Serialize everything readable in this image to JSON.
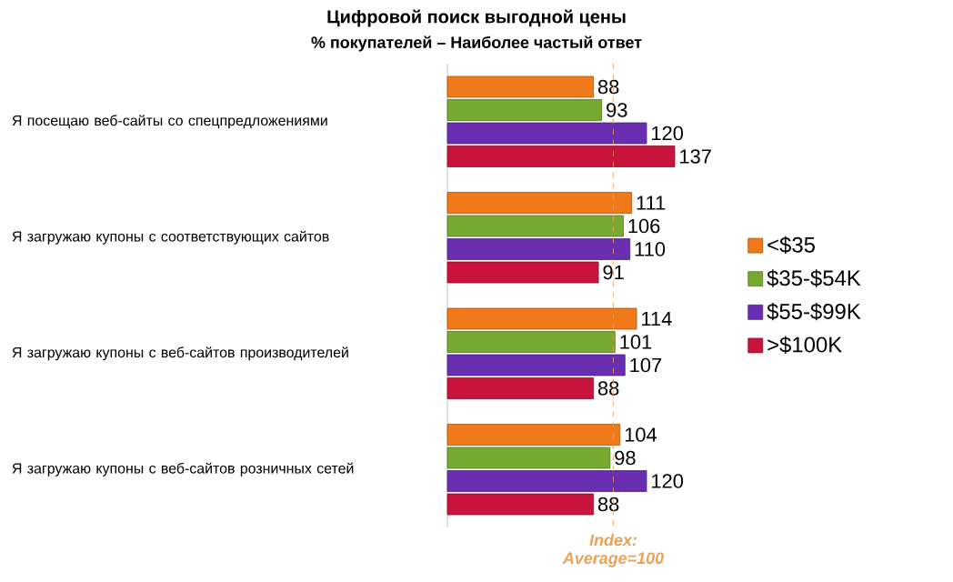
{
  "chart_data": {
    "type": "bar",
    "orientation": "horizontal",
    "title": "Цифровой поиск выгодной цены",
    "subtitle": "% покупателей – Наиболее частый ответ",
    "categories": [
      "Я посещаю веб-сайты со спецпредложениями",
      "Я загружаю купоны с соответствующих сайтов",
      "Я загружаю купоны с веб-сайтов производителей",
      "Я загружаю купоны с веб-сайтов розничных сетей"
    ],
    "series": [
      {
        "name": "<$35",
        "color": "#f07a1a",
        "values": [
          88,
          111,
          114,
          104
        ]
      },
      {
        "name": "$35-$54K",
        "color": "#77a830",
        "values": [
          93,
          106,
          101,
          98
        ]
      },
      {
        "name": "$55-$99K",
        "color": "#6a2fb0",
        "values": [
          120,
          110,
          107,
          120
        ]
      },
      {
        "name": ">$100K",
        "color": "#c8143c",
        "values": [
          137,
          91,
          88,
          88
        ]
      }
    ],
    "data_labels": true,
    "legend": "right",
    "ref_lines": [
      {
        "axis": "x",
        "value": 100,
        "label": "Index: Average=100",
        "color": "#f0a050",
        "line_style": "dashed"
      }
    ]
  }
}
